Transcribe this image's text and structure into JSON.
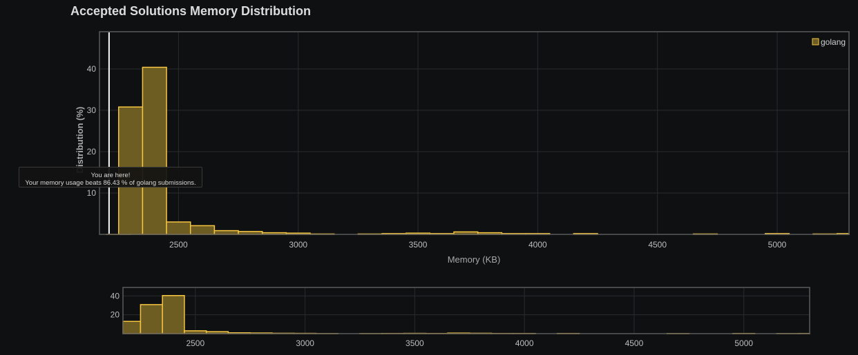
{
  "chart_data": [
    {
      "type": "bar",
      "title": "Accepted Solutions Memory Distribution",
      "xlabel": "Memory (KB)",
      "ylabel": "Distribution (%)",
      "xlim": [
        2170,
        5300
      ],
      "ylim": [
        0,
        49
      ],
      "xticks": [
        2500,
        3000,
        3500,
        4000,
        4500,
        5000
      ],
      "yticks": [
        10,
        20,
        30,
        40
      ],
      "bin_width": 100,
      "grid": true,
      "legend_position": "top-right",
      "series": [
        {
          "name": "golang",
          "color": "#f5c542",
          "bins": [
            {
              "x0": 2200,
              "value": 0.0
            },
            {
              "x0": 2250,
              "value": 30.8
            },
            {
              "x0": 2350,
              "value": 40.4
            },
            {
              "x0": 2450,
              "value": 3.0
            },
            {
              "x0": 2550,
              "value": 2.1
            },
            {
              "x0": 2650,
              "value": 0.9
            },
            {
              "x0": 2750,
              "value": 0.7
            },
            {
              "x0": 2850,
              "value": 0.4
            },
            {
              "x0": 2950,
              "value": 0.3
            },
            {
              "x0": 3050,
              "value": 0.1
            },
            {
              "x0": 3250,
              "value": 0.1
            },
            {
              "x0": 3350,
              "value": 0.2
            },
            {
              "x0": 3450,
              "value": 0.3
            },
            {
              "x0": 3550,
              "value": 0.2
            },
            {
              "x0": 3650,
              "value": 0.6
            },
            {
              "x0": 3750,
              "value": 0.4
            },
            {
              "x0": 3850,
              "value": 0.2
            },
            {
              "x0": 3950,
              "value": 0.2
            },
            {
              "x0": 4150,
              "value": 0.2
            },
            {
              "x0": 4650,
              "value": 0.1
            },
            {
              "x0": 4950,
              "value": 0.2
            },
            {
              "x0": 5150,
              "value": 0.1
            },
            {
              "x0": 5250,
              "value": 0.2
            }
          ]
        }
      ],
      "marker": {
        "x": 2210
      }
    },
    {
      "type": "bar",
      "title": "",
      "xlim": [
        2170,
        5300
      ],
      "ylim": [
        0,
        49
      ],
      "xticks": [
        2500,
        3000,
        3500,
        4000,
        4500,
        5000
      ],
      "yticks": [
        20,
        40
      ],
      "bin_width": 100,
      "grid": true,
      "series": [
        {
          "color": "#f5c542",
          "bins": [
            {
              "x0": 2150,
              "value": 13.0
            },
            {
              "x0": 2250,
              "value": 30.8
            },
            {
              "x0": 2350,
              "value": 40.4
            },
            {
              "x0": 2450,
              "value": 3.0
            },
            {
              "x0": 2550,
              "value": 2.1
            },
            {
              "x0": 2650,
              "value": 0.9
            },
            {
              "x0": 2750,
              "value": 0.7
            },
            {
              "x0": 2850,
              "value": 0.4
            },
            {
              "x0": 2950,
              "value": 0.3
            },
            {
              "x0": 3050,
              "value": 0.1
            },
            {
              "x0": 3250,
              "value": 0.1
            },
            {
              "x0": 3350,
              "value": 0.2
            },
            {
              "x0": 3450,
              "value": 0.3
            },
            {
              "x0": 3550,
              "value": 0.2
            },
            {
              "x0": 3650,
              "value": 0.6
            },
            {
              "x0": 3750,
              "value": 0.4
            },
            {
              "x0": 3850,
              "value": 0.2
            },
            {
              "x0": 3950,
              "value": 0.2
            },
            {
              "x0": 4150,
              "value": 0.2
            },
            {
              "x0": 4650,
              "value": 0.1
            },
            {
              "x0": 4950,
              "value": 0.2
            },
            {
              "x0": 5150,
              "value": 0.1
            },
            {
              "x0": 5250,
              "value": 0.2
            }
          ]
        }
      ]
    }
  ],
  "tooltip": {
    "line1": "You are here!",
    "line2": "Your memory usage beats 86.43 % of golang submissions."
  },
  "colors": {
    "background": "#0f1012",
    "bar_fill": "#6e5d22",
    "bar_stroke": "#f5c542",
    "marker": "#ffffff",
    "grid": "#2a2b2e",
    "frame": "#5a5a5a"
  }
}
